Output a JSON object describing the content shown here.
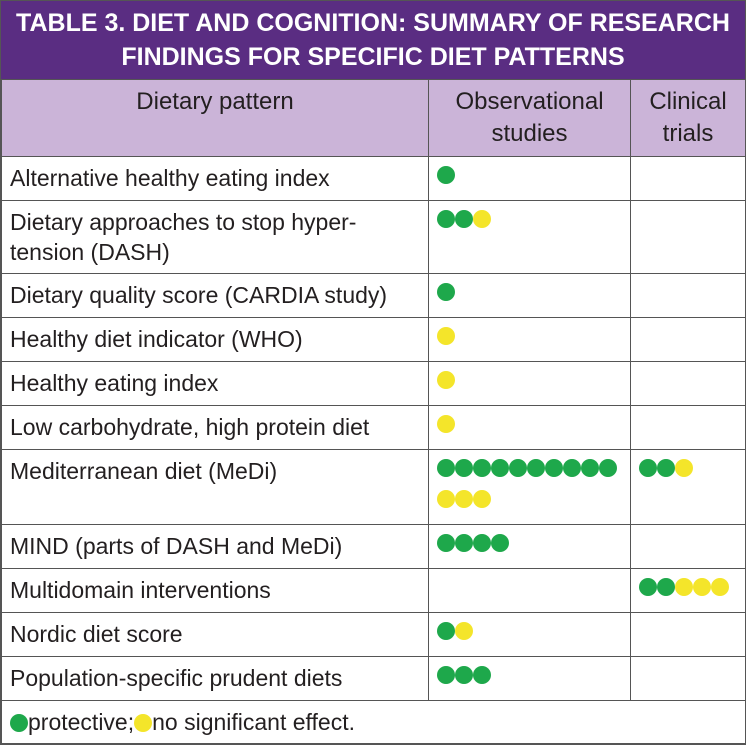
{
  "title": "TABLE 3. DIET AND COGNITION: SUMMARY OF RESEARCH FINDINGS FOR SPECIFIC DIET PATTERNS",
  "columns": [
    "Dietary pattern",
    "Observational studies",
    "Clinical trials"
  ],
  "colors": {
    "protective": "#1ea84b",
    "no_effect": "#f4e52a"
  },
  "rows": [
    {
      "pattern": "Alternative healthy eating index",
      "observational": {
        "protective": 1,
        "no_effect": 0
      }
    },
    {
      "pattern": "Dietary approaches to stop hyper-tension (DASH)",
      "observational": {
        "protective": 2,
        "no_effect": 1
      }
    },
    {
      "pattern": "Dietary quality score (CARDIA study)",
      "observational": {
        "protective": 1,
        "no_effect": 0
      }
    },
    {
      "pattern": "Healthy diet indicator (WHO)",
      "observational": {
        "protective": 0,
        "no_effect": 1
      }
    },
    {
      "pattern": "Healthy eating index",
      "observational": {
        "protective": 0,
        "no_effect": 1
      }
    },
    {
      "pattern": "Low carbohydrate, high protein diet",
      "observational": {
        "protective": 0,
        "no_effect": 1
      }
    },
    {
      "pattern": "Mediterranean diet (MeDi)",
      "observational": {
        "protective": 10,
        "no_effect": 3
      },
      "clinical": {
        "protective": 2,
        "no_effect": 1
      }
    },
    {
      "pattern": "MIND (parts of DASH and MeDi)",
      "observational": {
        "protective": 4,
        "no_effect": 0
      }
    },
    {
      "pattern": "Multidomain interventions",
      "clinical": {
        "protective": 2,
        "no_effect": 3
      }
    },
    {
      "pattern": "Nordic diet score",
      "observational": {
        "protective": 1,
        "no_effect": 1
      }
    },
    {
      "pattern": "Population-specific prudent diets",
      "observational": {
        "protective": 3,
        "no_effect": 0
      }
    }
  ],
  "legend": {
    "protective": "protective;",
    "no_effect": "no significant effect."
  }
}
